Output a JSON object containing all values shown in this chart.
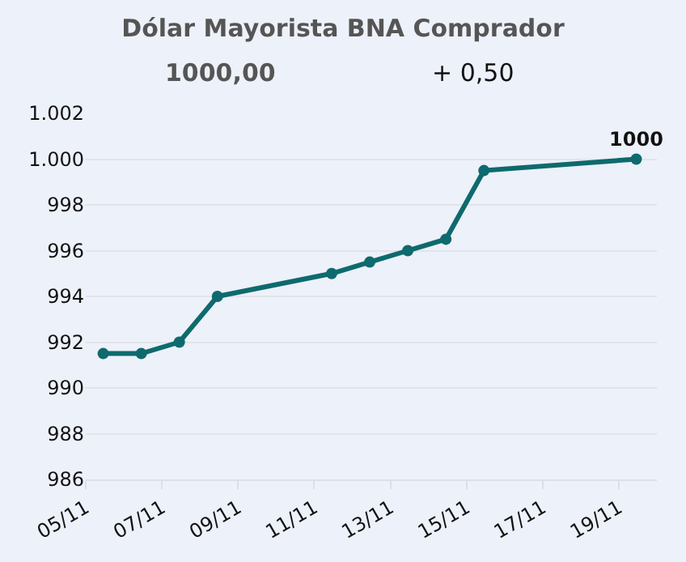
{
  "chart_data": {
    "type": "line",
    "title": "Dólar Mayorista BNA Comprador",
    "annotations": [
      "1000,00",
      "+ 0,50"
    ],
    "x": [
      "--11-05T11:00",
      "--11-06T11:00",
      "--11-07T11:00",
      "--11-08T11:00",
      "--11-11T11:00",
      "--11-12T11:00",
      "--11-13T11:00",
      "--11-14T11:00",
      "--11-15T11:00",
      "--11-19T11:00"
    ],
    "series": [
      {
        "color": "#0e6a6e",
        "values": [
          991.5,
          991.5,
          992,
          994,
          995,
          995.5,
          996,
          996.5,
          999.5,
          1000
        ],
        "value_labels": [
          null,
          null,
          null,
          null,
          null,
          null,
          null,
          null,
          null,
          "1000"
        ]
      }
    ],
    "xlim": [
      "--11-05",
      "--11-20"
    ],
    "xticks": [
      {
        "value": "--11-05",
        "label": "05/11"
      },
      {
        "value": "--11-07",
        "label": "07/11"
      },
      {
        "value": "--11-09",
        "label": "09/11"
      },
      {
        "value": "--11-11",
        "label": "11/11"
      },
      {
        "value": "--11-13",
        "label": "13/11"
      },
      {
        "value": "--11-15",
        "label": "15/11"
      },
      {
        "value": "--11-17",
        "label": "17/11"
      },
      {
        "value": "--11-19",
        "label": "19/11"
      }
    ],
    "ylim": [
      986,
      1002
    ],
    "yticks": [
      986,
      988,
      990,
      992,
      994,
      996,
      998,
      {
        "value": 1000,
        "label": "1.000"
      },
      {
        "value": 1002,
        "label": "1.002"
      }
    ],
    "grid": "y",
    "marker": "circle",
    "line_style": "solid"
  }
}
